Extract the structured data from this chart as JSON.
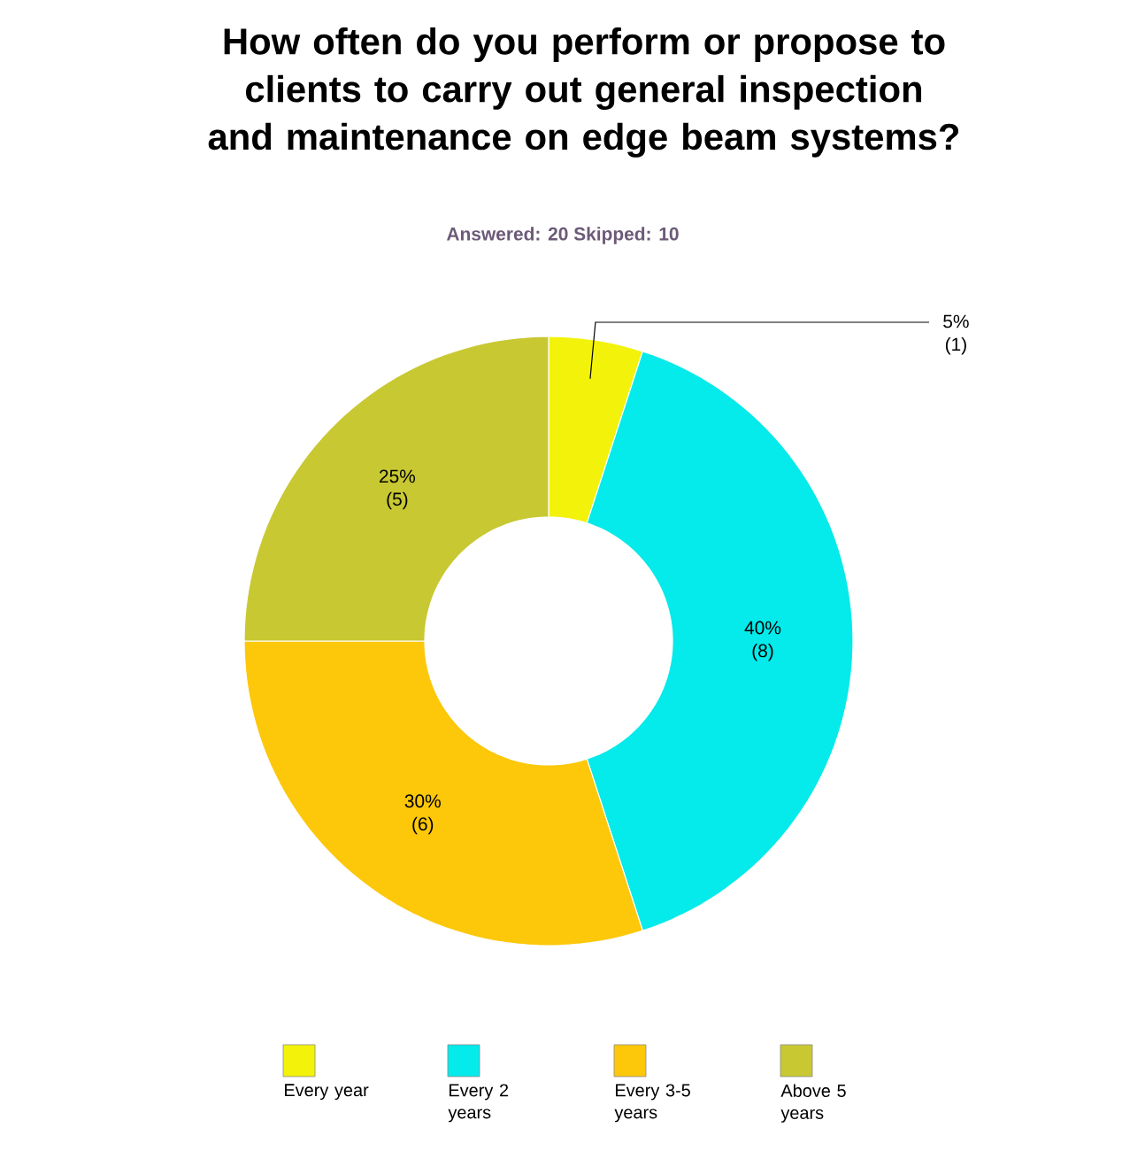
{
  "chart_data": {
    "type": "donut",
    "title": "How often do you perform or propose to clients to carry out general inspection and maintenance on edge beam systems?",
    "subtitle": "Answered: 20    Skipped: 10",
    "categories": [
      "Every year",
      "Every 2 years",
      "Every 3-5 years",
      "Above 5 years"
    ],
    "values": [
      5,
      40,
      30,
      25
    ],
    "value_labels": [
      "5% (1)",
      "40% (8)",
      "30% (6)",
      "25% (5)"
    ],
    "colors": [
      "#f2f20a",
      "#05eaea",
      "#fdc70a",
      "#c8c832"
    ],
    "legend": "bottom"
  }
}
